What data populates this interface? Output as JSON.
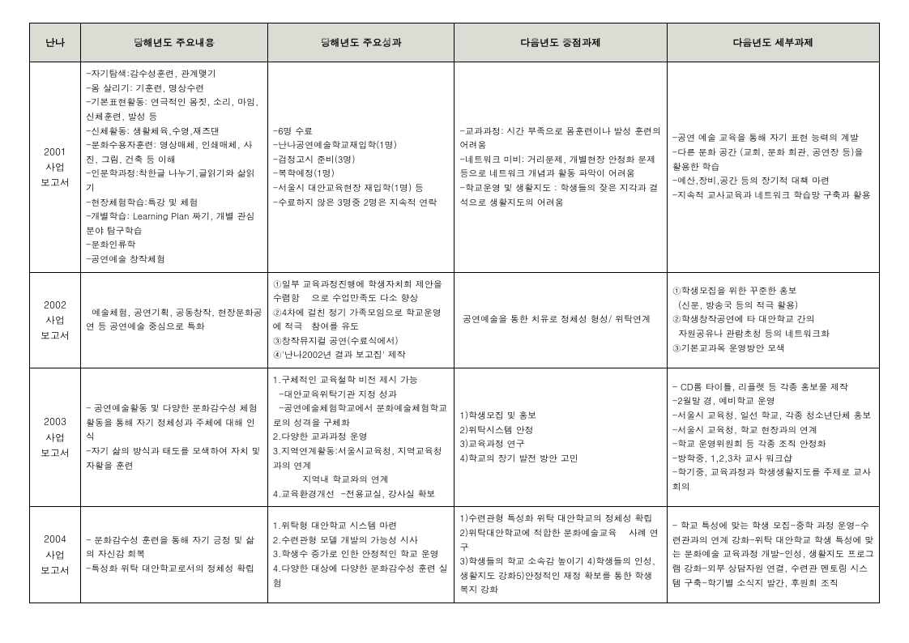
{
  "columns": [
    "난나",
    "당해년도 주요내용",
    "당해년도 주요성과",
    "다음년도 중점과제",
    "다음년도 세부과제"
  ],
  "rows": [
    {
      "label": "2001\n사업\n보고서",
      "c1": "-자기탐색:감수성훈련, 관계맺기\n-몸 살리기: 기훈련, 명상수련\n-기본표현활동: 연극적인 몸짓, 소리, 마임, 신체훈련, 발성 등\n-신체활동: 생활체육,수영,재즈댄\n-문화수용자훈련: 영상매체, 인쇄매체, 사진, 그림, 건축 등 이해\n-인문학과정:착한글 나누기,글읽기와 삶읽기\n-현장체험학습:특강 및 체험\n-개별학습: Learning Plan 짜기, 개별 관심분야 탐구학습\n-문화인류학\n-공연예술 창작체험",
      "c2": "-6명 수료\n-난나공연예술학교재입학(1명)\n-검정고시 준비(3명)\n-복학예정(1명)\n-서울시 대안교육현장 재입학(1명) 등\n-수료하지 않은 3명중 2명은 지속적 연락",
      "c3": "-교과과정: 시간 부족으로 몸훈련이나 발성 훈련의 어려움\n-네트워크 미비: 거리문제, 개별현장 안정화 문제 등으로 네트워크 개념과 활동 파악이 어려움\n-학교운영 및 생활지도 : 학생들의 잦은 지각과 결석으로 생활지도의 어려움",
      "c4": "-공연 예술 교육을 통해 자기 표현 능력의 계발\n-다른 문화 공간 (교회, 문화 회관, 공연장 등)을 활용한 학습\n-예산,장비,공간 등의 장기적 대책 마련\n-지속적 교사교육과 네트워크 학습망 구축과 활용"
    },
    {
      "label": "2002\n사업\n보고서",
      "c1": "  예술체험, 공연기획, 공동창작, 현장문화공연 등 공연예술 중심으로 특화",
      "c2": "①일부 교육과정진행에 학생자치회 제안을 수렴함    으로 수업만족도 다소 향상\n②4차에 걸친 정기 가족모임으로 학교운영에 적극   참여를 유도\n③창작뮤지컬 공연(수료식에서)\n④'난나2002년 결과 보고집' 제작",
      "c3": " 공연예술을 통한 치유로 정체성 형성/ 위탁연계",
      "c4": "①학생모집을 위한 꾸준한 홍보\n  (신문, 방송국 등의 적극 활용)\n②학생창작공연에 타 대안학교 간의\n  자원공유나 관람초청 등의 네트워크화\n③기본교과목 운영방안 모색"
    },
    {
      "label": "2003\n사업\n보고서",
      "c1": "- 공연예술활동 및 다양한 문화감수성 체험활동을 통해 자기 정체성과 주체에 대해 인식\n-자기 삶의 방식과 태도를 모색하여 자치 및 자활을 훈련",
      "c2": "1.구체적인 교육철학 비전 제시 가능\n  -대안교육위탁기관 지정 성과\n  -공연예술체험학교에서 문화예술체험학교로의 성격을 구체화\n2.다양한 교과과정 운영\n3.지역연계활동:서울시교육청, 지역교육청과의 연계\n          지역내 학교와의 연계\n4.교육환경개선  -전용교실, 강사실 확보",
      "c3": "1)학생모집 및 홍보\n2)위탁시스템 안정\n3)교육과정 연구\n4)학교의 장기 발전 방안 고민",
      "c4": "- CD롬 타이틀, 리플렛 등 각종 홍보물 제작\n-2월말 경, 예비학교 운영\n-서울시 교육청, 일선 학교, 각종 청소년단체 홍보\n-서울시 교육청, 학교 현장과의 연계\n-학교 운영위원회 등 각종 조직 안정화\n-방학중, 1,2,3차 교사 워크샵\n-학기중, 교육과정과 학생생활지도를 주제로 교사회의"
    },
    {
      "label": "2004\n사업\n보고서",
      "c1": "- 문화감수성 훈련을 통해 자기 긍정 및 삶의 자신감 회복\n-특성화 위탁 대안학교로서의 정체성 확립",
      "c2": "1.위탁형 대안학교 시스템 마련\n2.수련관형 모델 개발의 가능성 시사\n3.학생수 증가로 인한 안정적인 학교 운영\n4.다양한 대상에 다양한 문화감수성 훈련 실험",
      "c3": "1)수련관형 특성화 위탁 대안학교의 정체성 확립\n2)위탁대안학교에 적합한 문화예술교육    사례 연구\n3)학생들의 학교 소속감 높이기 4)학생들의 인성, 생활지도 강화5)안정적인 재정 확보를 통한 학생 복지 강화",
      "c4": "- 학교 특성에 맞는 학생 모집-중학 과정 운영-수련관과의 연계 강화-위탁 대안학교 학생 특성에 맞는 문화예술 교육과정 개발-인성, 생활지도 프로그램 강화-외부 상담자원 연결, 수련관 멘토링 시스템 구축-학기별 소식지 발간, 후원회 조직"
    }
  ]
}
